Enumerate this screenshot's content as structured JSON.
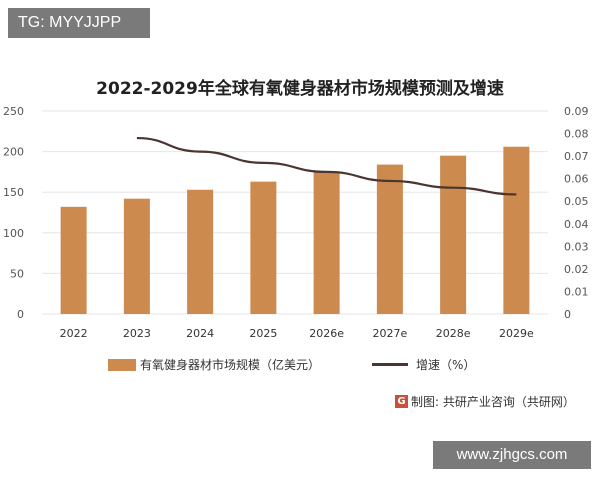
{
  "watermark_top": "TG: MYYJJPP",
  "watermark_url": "www.zjhgcs.com",
  "source_label": "制图: 共研产业咨询（共研网）",
  "source_logo_letter": "G",
  "colors": {
    "bar": "#cc8a4e",
    "line": "#4a3530",
    "grid": "#e6e6e6"
  },
  "chart_data": {
    "type": "bar",
    "title": "2022-2029年全球有氧健身器材市场规模预测及增速",
    "categories": [
      "2022",
      "2023",
      "2024",
      "2025",
      "2026e",
      "2027e",
      "2028e",
      "2029e"
    ],
    "series": [
      {
        "name": "有氧健身器材市场规模（亿美元）",
        "type": "bar",
        "axis": "left",
        "values": [
          132,
          142,
          153,
          163,
          175,
          184,
          195,
          206
        ]
      },
      {
        "name": "增速（%）",
        "type": "line",
        "axis": "right",
        "values": [
          null,
          0.078,
          0.072,
          0.067,
          0.063,
          0.059,
          0.056,
          0.053
        ]
      }
    ],
    "y_left": {
      "ylim": [
        0,
        250
      ],
      "ticks": [
        "0",
        "50",
        "100",
        "150",
        "200",
        "250"
      ]
    },
    "y_right": {
      "ylim": [
        0,
        0.09
      ],
      "ticks": [
        "0",
        "0.01",
        "0.02",
        "0.03",
        "0.04",
        "0.05",
        "0.06",
        "0.07",
        "0.08",
        "0.09"
      ]
    },
    "grid": true,
    "legend": "bottom"
  }
}
